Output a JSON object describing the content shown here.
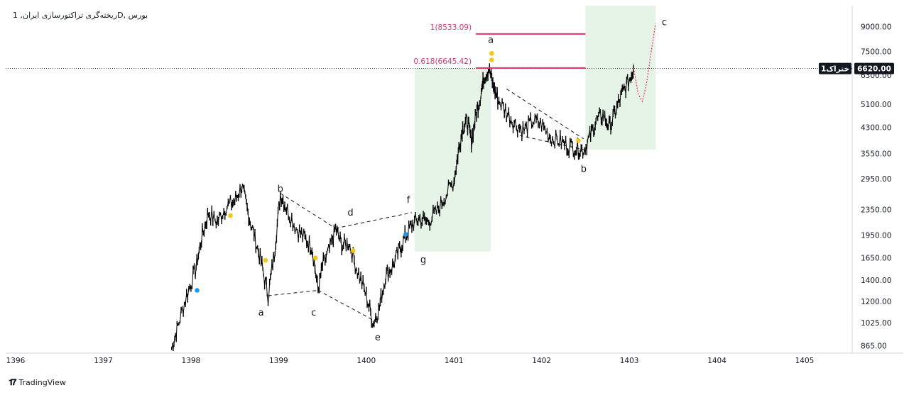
{
  "chart_title": "بورس ,Dریخته‌گری تراکتورسازی ایران, 1",
  "branding": {
    "name": "TradingView",
    "icon": "tradingview-logo-icon"
  },
  "colors": {
    "candle": "#000000",
    "fib_line": "#e0306e",
    "zone_fill": "#c8e6c9",
    "price_tag_bg": "#131722",
    "price_tag_label_bg": "#131722",
    "marker_yellow": "#f5c518",
    "marker_blue": "#2196f3",
    "projection": "#e0306e"
  },
  "chart_data": {
    "type": "line",
    "title": "بورس ,Dریخته‌گری تراکتورسازی ایران, 1",
    "x_axis_labels": [
      "1396",
      "1397",
      "1398",
      "1399",
      "1400",
      "1401",
      "1402",
      "1403",
      "1404",
      "1405"
    ],
    "y_axis_labels": [
      "9000.00",
      "7500.00",
      "6300.00",
      "5100.00",
      "4300.00",
      "3550.00",
      "2950.00",
      "2350.00",
      "1950.00",
      "1650.00",
      "1400.00",
      "1200.00",
      "1025.00",
      "865.00"
    ],
    "y_scale": "log",
    "xlim": [
      1396,
      1405.5
    ],
    "ylim": [
      820,
      10500
    ],
    "current_price": {
      "label": "6620.00",
      "symbol": "ختراک1"
    },
    "fib_levels": [
      {
        "label": "1(8533.09)",
        "value": 8533.09,
        "x_start": 1401.25,
        "x_end": 1402.5
      },
      {
        "label": "0.618(6645.42)",
        "value": 6645.42,
        "x_start": 1401.25,
        "x_end": 1402.5
      }
    ],
    "zones": [
      {
        "x_start": 1400.55,
        "x_end": 1401.42,
        "y_low": 1730,
        "y_high": 6645.42
      },
      {
        "x_start": 1402.5,
        "x_end": 1403.3,
        "y_low": 3650,
        "y_high": 10500
      }
    ],
    "wave_labels": [
      {
        "text": "a",
        "x": 1398.8,
        "y": 1080
      },
      {
        "text": "b",
        "x": 1399.02,
        "y": 2680
      },
      {
        "text": "c",
        "x": 1399.4,
        "y": 1080
      },
      {
        "text": "d",
        "x": 1399.82,
        "y": 2250
      },
      {
        "text": "e",
        "x": 1400.13,
        "y": 900
      },
      {
        "text": "f",
        "x": 1400.48,
        "y": 2470
      },
      {
        "text": "g",
        "x": 1400.65,
        "y": 1590
      },
      {
        "text": "a",
        "x": 1401.42,
        "y": 8000
      },
      {
        "text": "b",
        "x": 1402.48,
        "y": 3100
      },
      {
        "text": "c",
        "x": 1403.4,
        "y": 9100
      }
    ],
    "series": [
      {
        "x": [
          1397.78,
          1397.85,
          1397.95,
          1398.05,
          1398.12,
          1398.2,
          1398.3,
          1398.4,
          1398.5,
          1398.58,
          1398.65,
          1398.72,
          1398.8,
          1398.88,
          1398.95,
          1399.02,
          1399.1,
          1399.2,
          1399.3,
          1399.38,
          1399.45,
          1399.5,
          1399.58,
          1399.65,
          1399.72,
          1399.8,
          1399.9,
          1400.0,
          1400.08,
          1400.15,
          1400.22,
          1400.3,
          1400.38,
          1400.45,
          1400.52,
          1400.6,
          1400.7,
          1400.8,
          1400.9,
          1401.0,
          1401.05,
          1401.1,
          1401.15,
          1401.2,
          1401.25,
          1401.3,
          1401.35,
          1401.4,
          1401.45,
          1401.5,
          1401.6,
          1401.7,
          1401.8,
          1401.9,
          1402.0,
          1402.1,
          1402.2,
          1402.3,
          1402.4,
          1402.48,
          1402.55,
          1402.62,
          1402.7,
          1402.78,
          1402.85,
          1402.92,
          1403.0,
          1403.05
        ],
        "values": [
          850,
          1000,
          1250,
          1500,
          1900,
          2300,
          2150,
          2400,
          2500,
          2800,
          2300,
          1950,
          1600,
          1250,
          1700,
          2650,
          2350,
          2050,
          1900,
          1800,
          1300,
          1550,
          1750,
          2050,
          1800,
          1850,
          1500,
          1250,
          1020,
          1150,
          1450,
          1550,
          1750,
          1950,
          2100,
          2200,
          2150,
          2300,
          2600,
          2900,
          3600,
          4300,
          4500,
          3900,
          4700,
          5400,
          6300,
          6645,
          5800,
          5300,
          4800,
          4400,
          4200,
          4500,
          4400,
          4000,
          3900,
          3750,
          3700,
          3650,
          4000,
          4500,
          4700,
          4300,
          4900,
          5500,
          6100,
          6645
        ]
      }
    ],
    "projection": {
      "x": [
        1403.05,
        1403.1,
        1403.15,
        1403.2,
        1403.25,
        1403.3
      ],
      "values": [
        6645,
        5500,
        5200,
        6000,
        7500,
        9200
      ]
    }
  }
}
